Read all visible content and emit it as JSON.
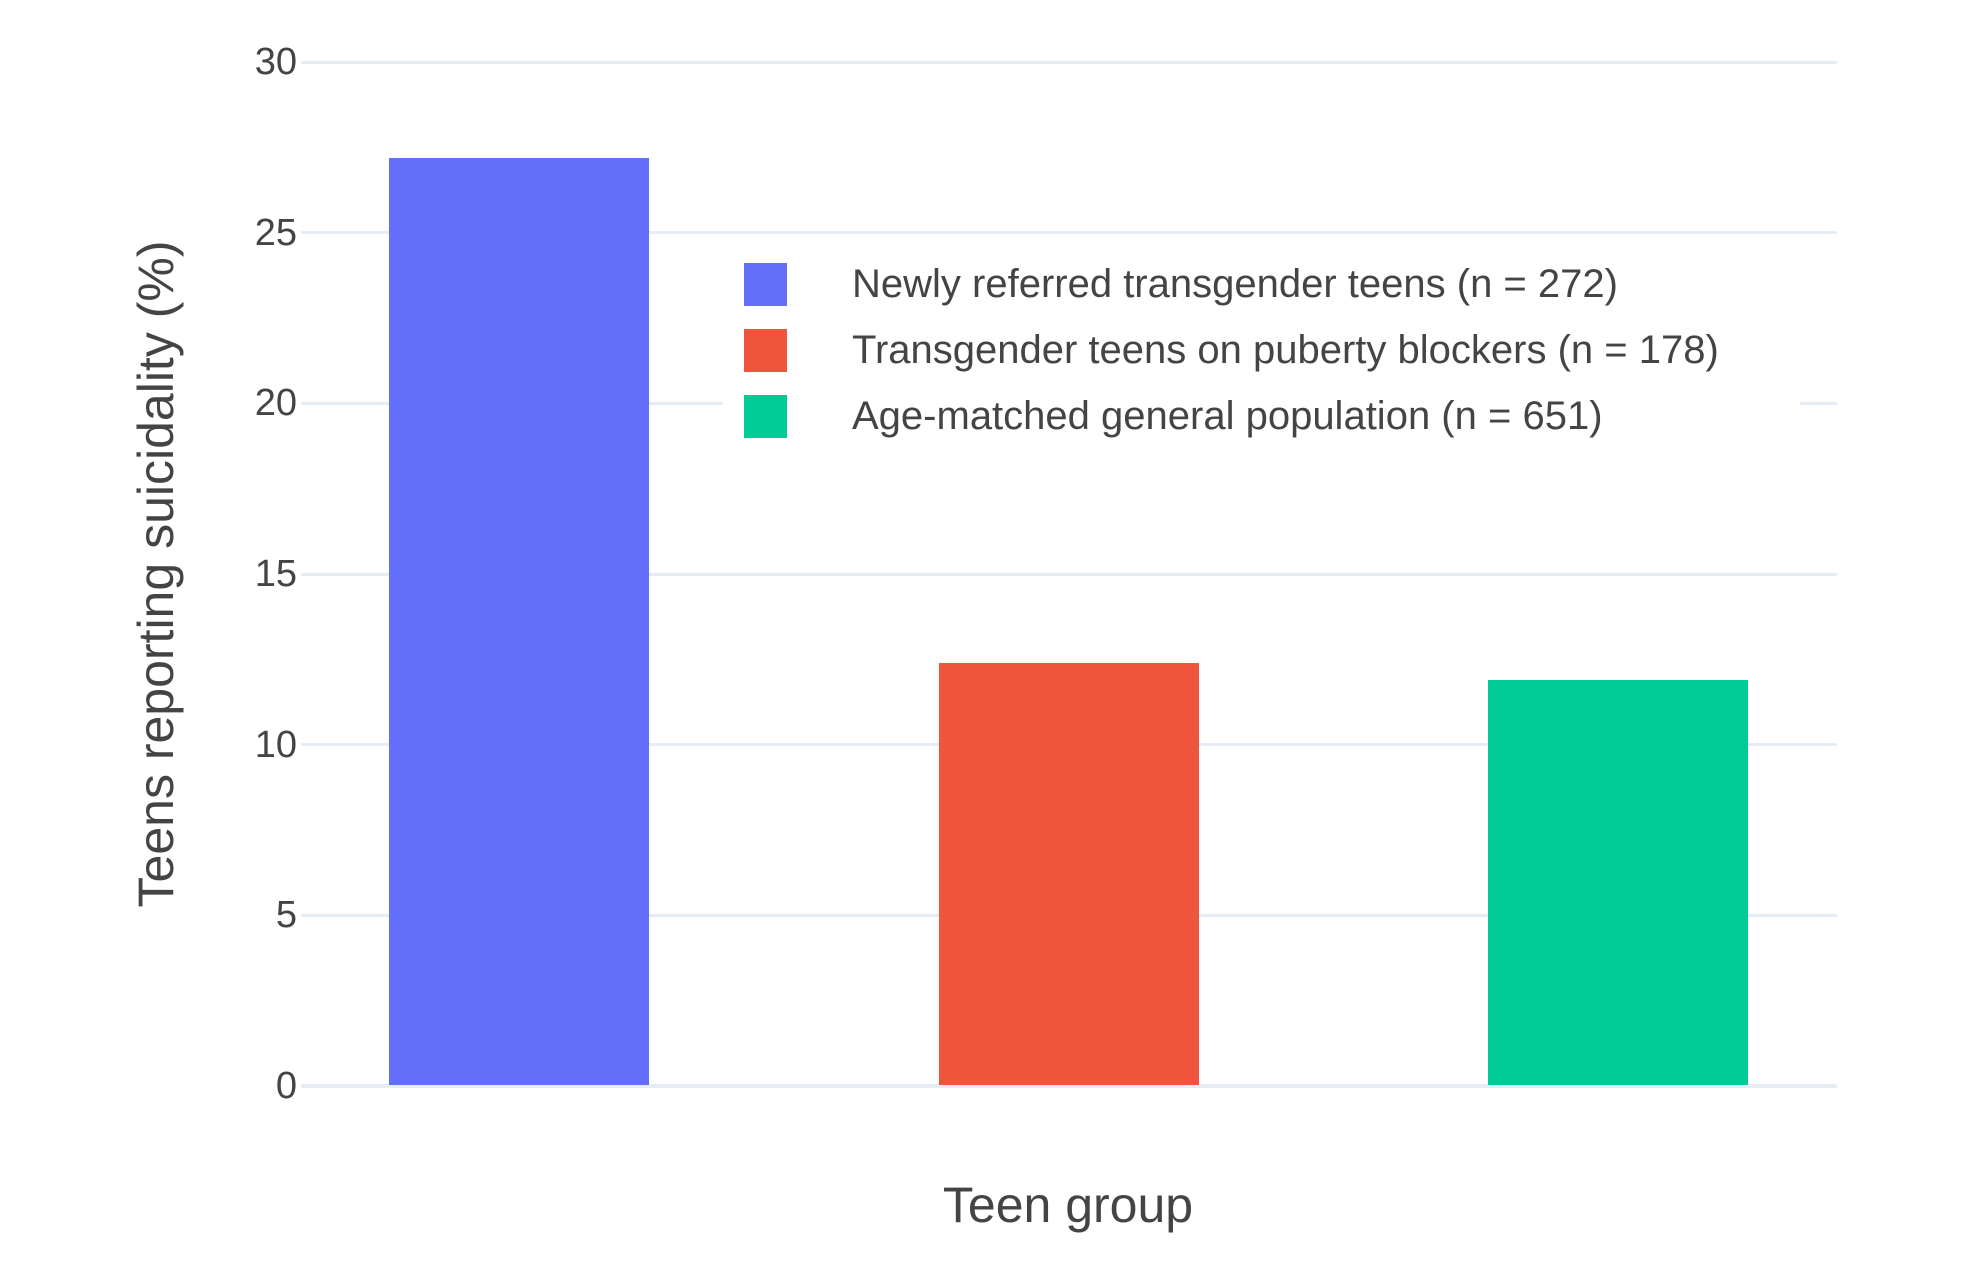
{
  "chart_data": {
    "type": "bar",
    "title": "",
    "xlabel": "Teen group",
    "ylabel": "Teens reporting suicidality (%)",
    "categories": [
      "Newly referred transgender teens (n = 272)",
      "Transgender teens on puberty blockers (n = 178)",
      "Age-matched general population (n = 651)"
    ],
    "values": [
      27.2,
      12.4,
      11.9
    ],
    "colors": [
      "#636EFA",
      "#EF553B",
      "#00CC96"
    ],
    "yticks": [
      0,
      5,
      10,
      15,
      20,
      25,
      30
    ],
    "ylim": [
      0,
      30
    ],
    "grid": true,
    "legend_position": "inside-top-right",
    "legend_entries": [
      "Newly referred transgender teens (n = 272)",
      "Transgender teens on puberty blockers (n = 178)",
      "Age-matched general population (n = 651)"
    ],
    "background_color": "#FFFFFF",
    "gridline_color": "#E5ECF6",
    "text_color": "#444444"
  }
}
